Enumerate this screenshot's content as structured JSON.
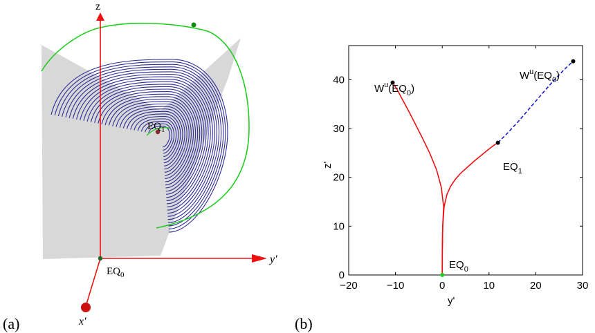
{
  "panel_a": {
    "label": "(a)",
    "axes": {
      "z": "z",
      "y": "y′",
      "x": "x′"
    },
    "equilibria": [
      {
        "name_main": "EQ",
        "name_sub": "1"
      },
      {
        "name_main": "EQ",
        "name_sub": "0"
      }
    ],
    "colors": {
      "orbit": "#2b2b99",
      "manifold": "#22cc22",
      "axis": "#ee1111",
      "plane": "#d8d8d8"
    }
  },
  "panel_b": {
    "label": "(b)",
    "colors": {
      "solid": "#ee1111",
      "dashed": "#1a1acc",
      "point": "#000000",
      "origin_point": "#22cc22"
    }
  },
  "chart_data": {
    "type": "line",
    "title": "",
    "xlabel": "y'",
    "ylabel": "z'",
    "xlim": [
      -20,
      30
    ],
    "ylim": [
      0,
      47
    ],
    "xticks": [
      -20,
      -10,
      0,
      10,
      20,
      30
    ],
    "yticks": [
      0,
      10,
      20,
      30,
      40
    ],
    "grid": false,
    "series": [
      {
        "style": "solid",
        "color": "#ee1111",
        "x": [
          0,
          0.02,
          0.1,
          0.4,
          1.0,
          1.8,
          2.8,
          4.0,
          5.4,
          6.8,
          8.2,
          9.6,
          10.8,
          11.9
        ],
        "y": [
          0,
          5,
          10,
          14,
          16.5,
          18.2,
          19.6,
          20.9,
          22.1,
          23.3,
          24.4,
          25.5,
          26.4,
          27.1
        ]
      },
      {
        "style": "solid",
        "color": "#ee1111",
        "x": [
          0,
          0.02,
          0.1,
          0.3,
          -0.2,
          -1.2,
          -2.6,
          -4.2,
          -5.8,
          -7.3,
          -8.6,
          -9.7,
          -10.6
        ],
        "y": [
          0,
          5,
          10,
          14,
          18,
          21.5,
          24.8,
          28,
          31,
          33.8,
          36.1,
          38.1,
          39.4
        ]
      },
      {
        "style": "dashed",
        "color": "#1a1acc",
        "x": [
          11.9,
          14,
          16.5,
          19,
          21.5,
          24,
          26.2,
          28
        ],
        "y": [
          27.1,
          29.1,
          31.7,
          34.5,
          37.3,
          40,
          42.2,
          43.8
        ]
      }
    ],
    "points": [
      {
        "name": "EQ_0",
        "x": 0,
        "y": 0,
        "color": "#22cc22"
      },
      {
        "name": "EQ_1",
        "x": 11.9,
        "y": 27.1,
        "color": "#000000"
      },
      {
        "name": "Wu_EQ0_left",
        "x": -10.6,
        "y": 39.4,
        "color": "#000000"
      },
      {
        "name": "Wu_EQ0_right",
        "x": 28,
        "y": 43.8,
        "color": "#000000"
      }
    ],
    "annotations": [
      {
        "main": "W",
        "sup": "u",
        "rest": "(EQ",
        "sub": "0",
        "close": ")"
      },
      {
        "main": "W",
        "sup": "u",
        "rest": "(EQ",
        "sub": "0",
        "close": ")"
      },
      {
        "main": "EQ",
        "sub": "1"
      },
      {
        "main": "EQ",
        "sub": "0"
      }
    ]
  }
}
